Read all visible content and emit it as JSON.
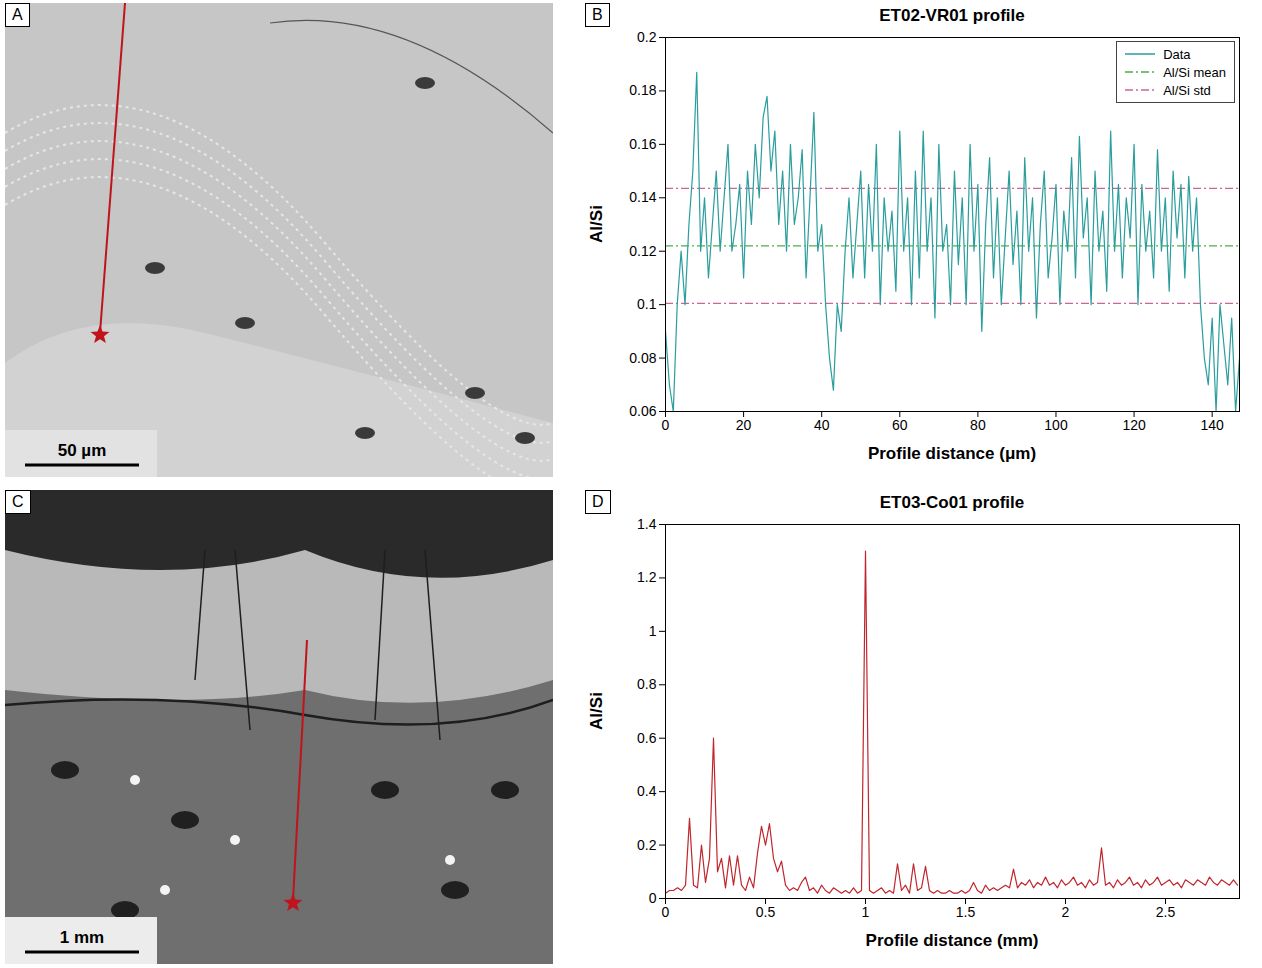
{
  "chart_data": [
    {
      "panel": "B",
      "type": "line",
      "title": "ET02-VR01 profile",
      "x_label": "Profile distance (μm)",
      "y_label": "Al/Si",
      "x": [
        0,
        1,
        2,
        3,
        4,
        5,
        6,
        7,
        8,
        9,
        10,
        11,
        12,
        13,
        14,
        15,
        16,
        17,
        18,
        19,
        20,
        21,
        22,
        23,
        24,
        25,
        26,
        27,
        28,
        29,
        30,
        31,
        32,
        33,
        34,
        35,
        36,
        37,
        38,
        39,
        40,
        41,
        42,
        43,
        44,
        45,
        46,
        47,
        48,
        49,
        50,
        51,
        52,
        53,
        54,
        55,
        56,
        57,
        58,
        59,
        60,
        61,
        62,
        63,
        64,
        65,
        66,
        67,
        68,
        69,
        70,
        71,
        72,
        73,
        74,
        75,
        76,
        77,
        78,
        79,
        80,
        81,
        82,
        83,
        84,
        85,
        86,
        87,
        88,
        89,
        90,
        91,
        92,
        93,
        94,
        95,
        96,
        97,
        98,
        99,
        100,
        101,
        102,
        103,
        104,
        105,
        106,
        107,
        108,
        109,
        110,
        111,
        112,
        113,
        114,
        115,
        116,
        117,
        118,
        119,
        120,
        121,
        122,
        123,
        124,
        125,
        126,
        127,
        128,
        129,
        130,
        131,
        132,
        133,
        134,
        135,
        136,
        137,
        138,
        139,
        140,
        141,
        142,
        143,
        144,
        145,
        146,
        147
      ],
      "series": [
        {
          "name": "Data",
          "color": "#2a9d9d",
          "line_style": "solid",
          "values": [
            0.09,
            0.07,
            0.06,
            0.1,
            0.12,
            0.1,
            0.13,
            0.15,
            0.187,
            0.12,
            0.14,
            0.11,
            0.13,
            0.15,
            0.12,
            0.14,
            0.16,
            0.12,
            0.13,
            0.145,
            0.11,
            0.15,
            0.13,
            0.16,
            0.14,
            0.17,
            0.178,
            0.15,
            0.165,
            0.13,
            0.15,
            0.12,
            0.16,
            0.13,
            0.14,
            0.158,
            0.11,
            0.14,
            0.172,
            0.12,
            0.13,
            0.1,
            0.08,
            0.068,
            0.1,
            0.09,
            0.12,
            0.14,
            0.11,
            0.13,
            0.15,
            0.11,
            0.145,
            0.12,
            0.16,
            0.1,
            0.14,
            0.12,
            0.135,
            0.105,
            0.165,
            0.12,
            0.14,
            0.1,
            0.15,
            0.11,
            0.165,
            0.12,
            0.14,
            0.095,
            0.16,
            0.12,
            0.13,
            0.1,
            0.15,
            0.115,
            0.14,
            0.1,
            0.16,
            0.12,
            0.145,
            0.09,
            0.13,
            0.155,
            0.11,
            0.14,
            0.1,
            0.125,
            0.15,
            0.115,
            0.135,
            0.1,
            0.155,
            0.12,
            0.14,
            0.095,
            0.13,
            0.15,
            0.11,
            0.125,
            0.145,
            0.1,
            0.135,
            0.12,
            0.155,
            0.11,
            0.163,
            0.125,
            0.14,
            0.1,
            0.15,
            0.12,
            0.135,
            0.105,
            0.165,
            0.12,
            0.145,
            0.11,
            0.14,
            0.125,
            0.16,
            0.1,
            0.145,
            0.12,
            0.135,
            0.11,
            0.158,
            0.12,
            0.14,
            0.105,
            0.15,
            0.125,
            0.145,
            0.11,
            0.148,
            0.12,
            0.14,
            0.1,
            0.08,
            0.07,
            0.095,
            0.06,
            0.1,
            0.085,
            0.07,
            0.095,
            0.06,
            0.08
          ]
        }
      ],
      "reference_lines": [
        {
          "name": "Al/Si mean",
          "color": "#4dac4d",
          "line_style": "dashdot",
          "y": [
            0.122
          ]
        },
        {
          "name": "Al/Si std",
          "color": "#cc6699",
          "line_style": "dashdot",
          "y": [
            0.1005,
            0.1435
          ]
        }
      ],
      "xlim": [
        0,
        147
      ],
      "xticks": [
        0,
        20,
        40,
        60,
        80,
        100,
        120,
        140
      ],
      "ylim": [
        0.06,
        0.2
      ],
      "yticks": [
        0.06,
        0.08,
        0.1,
        0.12,
        0.14,
        0.16,
        0.18,
        0.2
      ],
      "legend": "top-right",
      "grid": false
    },
    {
      "panel": "D",
      "type": "line",
      "title": "ET03-Co01 profile",
      "x_label": "Profile distance (mm)",
      "y_label": "Al/Si",
      "x": [
        0,
        0.02,
        0.04,
        0.06,
        0.08,
        0.1,
        0.12,
        0.14,
        0.16,
        0.18,
        0.2,
        0.22,
        0.24,
        0.26,
        0.28,
        0.3,
        0.32,
        0.34,
        0.36,
        0.38,
        0.4,
        0.42,
        0.44,
        0.46,
        0.48,
        0.5,
        0.52,
        0.54,
        0.56,
        0.58,
        0.6,
        0.62,
        0.64,
        0.66,
        0.68,
        0.7,
        0.72,
        0.74,
        0.76,
        0.78,
        0.8,
        0.82,
        0.84,
        0.86,
        0.88,
        0.9,
        0.92,
        0.94,
        0.96,
        0.98,
        1,
        1.02,
        1.04,
        1.06,
        1.08,
        1.1,
        1.12,
        1.14,
        1.16,
        1.18,
        1.2,
        1.22,
        1.24,
        1.26,
        1.28,
        1.3,
        1.32,
        1.34,
        1.36,
        1.38,
        1.4,
        1.42,
        1.44,
        1.46,
        1.48,
        1.5,
        1.52,
        1.54,
        1.56,
        1.58,
        1.6,
        1.62,
        1.64,
        1.66,
        1.68,
        1.7,
        1.72,
        1.74,
        1.76,
        1.78,
        1.8,
        1.82,
        1.84,
        1.86,
        1.88,
        1.9,
        1.92,
        1.94,
        1.96,
        1.98,
        2,
        2.02,
        2.04,
        2.06,
        2.08,
        2.1,
        2.12,
        2.14,
        2.16,
        2.18,
        2.2,
        2.22,
        2.24,
        2.26,
        2.28,
        2.3,
        2.32,
        2.34,
        2.36,
        2.38,
        2.4,
        2.42,
        2.44,
        2.46,
        2.48,
        2.5,
        2.52,
        2.54,
        2.56,
        2.58,
        2.6,
        2.62,
        2.64,
        2.66,
        2.68,
        2.7,
        2.72,
        2.74,
        2.76,
        2.78,
        2.8,
        2.82,
        2.84,
        2.86
      ],
      "series": [
        {
          "name": "Data",
          "color": "#c0262d",
          "line_style": "solid",
          "values": [
            0.02,
            0.03,
            0.03,
            0.04,
            0.03,
            0.05,
            0.3,
            0.05,
            0.04,
            0.2,
            0.06,
            0.15,
            0.6,
            0.1,
            0.15,
            0.04,
            0.16,
            0.05,
            0.16,
            0.05,
            0.03,
            0.08,
            0.04,
            0.17,
            0.27,
            0.2,
            0.28,
            0.15,
            0.1,
            0.14,
            0.05,
            0.03,
            0.04,
            0.03,
            0.06,
            0.08,
            0.03,
            0.04,
            0.02,
            0.05,
            0.03,
            0.02,
            0.04,
            0.03,
            0.02,
            0.03,
            0.02,
            0.04,
            0.02,
            0.03,
            1.3,
            0.03,
            0.02,
            0.03,
            0.04,
            0.02,
            0.03,
            0.02,
            0.13,
            0.03,
            0.05,
            0.02,
            0.13,
            0.03,
            0.04,
            0.12,
            0.03,
            0.02,
            0.03,
            0.02,
            0.02,
            0.03,
            0.02,
            0.02,
            0.03,
            0.02,
            0.03,
            0.06,
            0.03,
            0.02,
            0.05,
            0.03,
            0.04,
            0.03,
            0.04,
            0.05,
            0.04,
            0.11,
            0.04,
            0.06,
            0.05,
            0.07,
            0.04,
            0.06,
            0.05,
            0.08,
            0.05,
            0.06,
            0.04,
            0.07,
            0.05,
            0.06,
            0.08,
            0.05,
            0.06,
            0.04,
            0.07,
            0.05,
            0.06,
            0.19,
            0.05,
            0.06,
            0.04,
            0.07,
            0.05,
            0.06,
            0.08,
            0.05,
            0.06,
            0.04,
            0.07,
            0.05,
            0.06,
            0.08,
            0.05,
            0.06,
            0.07,
            0.05,
            0.06,
            0.04,
            0.07,
            0.06,
            0.05,
            0.07,
            0.06,
            0.05,
            0.08,
            0.06,
            0.05,
            0.07,
            0.06,
            0.05,
            0.07,
            0.05
          ]
        }
      ],
      "xlim": [
        0,
        2.87
      ],
      "xticks": [
        0,
        0.5,
        1,
        1.5,
        2,
        2.5
      ],
      "ylim": [
        0,
        1.4
      ],
      "yticks": [
        0,
        0.2,
        0.4,
        0.6,
        0.8,
        1,
        1.2,
        1.4
      ],
      "grid": false
    }
  ],
  "images": [
    {
      "panel": "A",
      "scale_bar": "50 µm"
    },
    {
      "panel": "C",
      "scale_bar": "1 mm"
    }
  ]
}
